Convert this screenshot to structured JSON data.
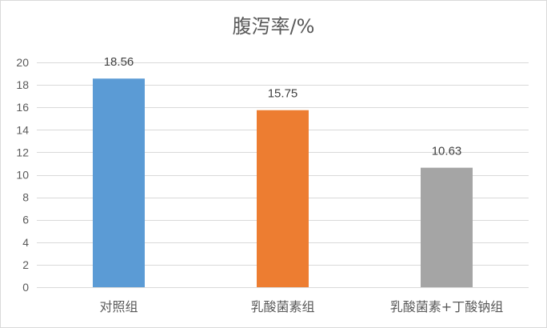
{
  "chart_data": {
    "type": "bar",
    "title": "腹泻率/%",
    "xlabel": "",
    "ylabel": "",
    "categories": [
      "对照组",
      "乳酸菌素组",
      "乳酸菌素+丁酸钠组"
    ],
    "values": [
      18.56,
      15.75,
      10.63
    ],
    "data_labels": [
      "18.56",
      "15.75",
      "10.63"
    ],
    "colors": [
      "#5b9bd5",
      "#ed7d31",
      "#a5a5a5"
    ],
    "ylim": [
      0,
      20
    ],
    "yticks": [
      0,
      2,
      4,
      6,
      8,
      10,
      12,
      14,
      16,
      18,
      20
    ],
    "ytick_labels": [
      "0",
      "2",
      "4",
      "6",
      "8",
      "10",
      "12",
      "14",
      "16",
      "18",
      "20"
    ],
    "grid": true,
    "legend": "none"
  }
}
